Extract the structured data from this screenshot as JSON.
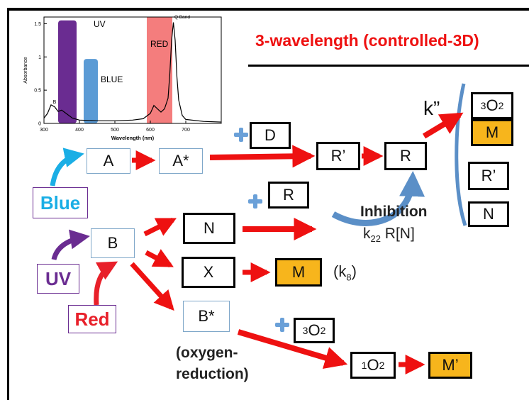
{
  "title": "3-wavelength  (controlled-3D)",
  "species": {
    "A": "A",
    "A_star": "A*",
    "D": "D",
    "R_prime_top": "R’",
    "R_top": "R",
    "B": "B",
    "R_mid": "R",
    "N": "N",
    "X": "X",
    "M_mid": "M",
    "B_star": "B*",
    "triplet_O2_low": "3O2",
    "singlet_O2": "1O2",
    "M_prime": "M’",
    "O2_col": "3O2",
    "M_col": "M",
    "R_prime_col": "R’",
    "N_col": "N"
  },
  "light": {
    "blue": "Blue",
    "uv": "UV",
    "red": "Red"
  },
  "labels": {
    "k_double_prime": "k”",
    "inhibition": "Inhibition",
    "k22_rate": "k22 R[N]",
    "k8": "(k8)",
    "oxygen_reduction_1": "(oxygen-",
    "oxygen_reduction_2": "reduction)"
  },
  "colors": {
    "arrow_red": "#ee1111",
    "blue_light": "#1aaee5",
    "uv_purple": "#6a2c91",
    "red_light": "#e8202a",
    "product_fill": "#f7b51c",
    "curve_blue": "#5b8fc7",
    "plus_blue": "#6aa0d8"
  },
  "chart_data": {
    "type": "line",
    "xlabel": "Wavelength (nm)",
    "ylabel": "Absorbance",
    "xlim": [
      300,
      800
    ],
    "ylim": [
      0,
      1.6
    ],
    "xticks": [
      300,
      400,
      500,
      600,
      700
    ],
    "yticks": [
      0,
      0.5,
      1,
      1.5
    ],
    "series": [
      {
        "x": [
          300,
          310,
          320,
          330,
          340,
          350,
          360,
          380,
          400,
          450,
          500,
          550,
          580,
          600,
          610,
          620,
          630,
          640,
          650,
          655,
          660,
          665,
          670,
          675,
          680,
          690,
          700,
          750,
          800
        ],
        "values": [
          0.08,
          0.15,
          0.28,
          0.25,
          0.18,
          0.2,
          0.16,
          0.08,
          0.05,
          0.04,
          0.04,
          0.05,
          0.07,
          0.15,
          0.27,
          0.22,
          0.17,
          0.22,
          0.38,
          0.75,
          1.25,
          1.52,
          1.25,
          0.7,
          0.35,
          0.12,
          0.06,
          0.03,
          0.02
        ]
      }
    ],
    "bands": [
      {
        "label": "UV",
        "x_from": 340,
        "x_to": 392,
        "height": 1.55,
        "color": "#6a2c91"
      },
      {
        "label": "BLUE",
        "x_from": 412,
        "x_to": 452,
        "height": 0.97,
        "color": "#5b9bd5"
      },
      {
        "label": "RED",
        "x_from": 590,
        "x_to": 662,
        "height": 1.6,
        "color": "#f47d7d"
      }
    ],
    "annotations": [
      {
        "text": "B",
        "x": 330,
        "y": 0.3
      },
      {
        "text": "Q Band",
        "x": 690,
        "y": 1.58
      }
    ]
  }
}
